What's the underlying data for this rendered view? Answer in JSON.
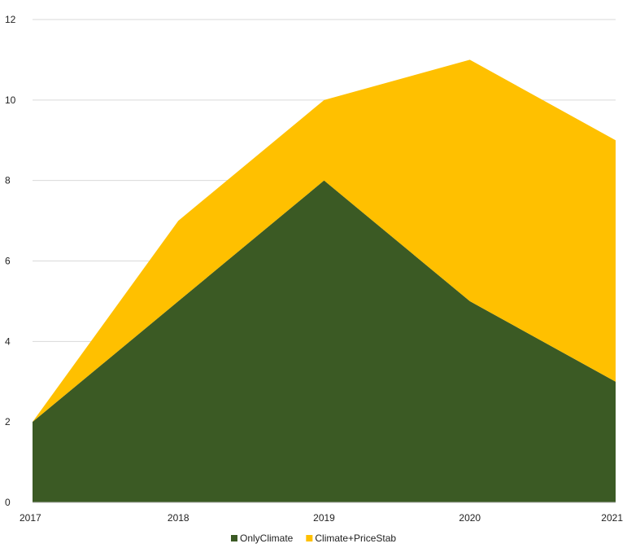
{
  "chart_data": {
    "type": "area",
    "stacked": true,
    "title": "",
    "xlabel": "",
    "ylabel": "",
    "x": [
      "2017",
      "2018",
      "2019",
      "2020",
      "2021"
    ],
    "ylim": [
      0,
      12
    ],
    "yticks": [
      "0",
      "2",
      "4",
      "6",
      "8",
      "10",
      "12"
    ],
    "grid": true,
    "legend_position": "bottom",
    "series": [
      {
        "name": "OnlyClimate",
        "values": [
          2,
          5,
          8,
          5,
          3
        ],
        "color": "#3b5a24"
      },
      {
        "name": "Climate+PriceStab",
        "values": [
          0,
          2,
          2,
          6,
          6
        ],
        "color": "#ffc000"
      }
    ]
  }
}
